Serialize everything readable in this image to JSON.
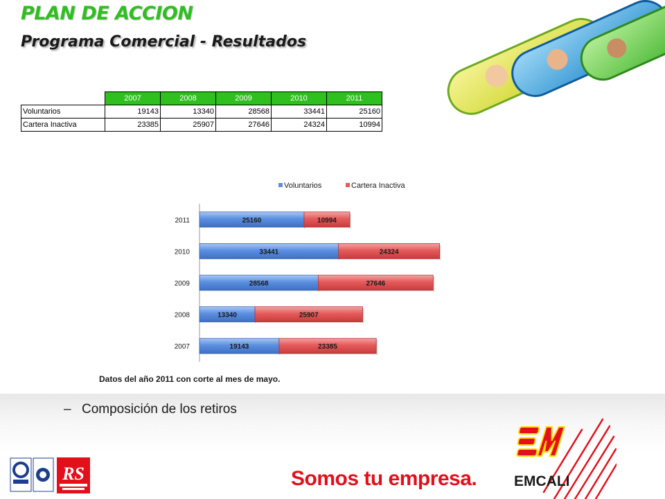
{
  "slide": {
    "title": "PLAN DE ACCION",
    "subtitle": "Programa Comercial - Resultados",
    "footnote": "Datos del año 2011 con corte al mes de mayo.",
    "bullet_dash": "–",
    "bullet": "Composición de los retiros"
  },
  "table": {
    "headers": [
      "2007",
      "2008",
      "2009",
      "2010",
      "2011"
    ],
    "rows": [
      {
        "label": "Voluntarios",
        "values": [
          "19143",
          "13340",
          "28568",
          "33441",
          "25160"
        ]
      },
      {
        "label": "Cartera Inactiva",
        "values": [
          "23385",
          "25907",
          "27646",
          "24324",
          "10994"
        ]
      }
    ]
  },
  "chart_data": {
    "type": "bar",
    "orientation": "horizontal",
    "stacked": true,
    "categories": [
      "2007",
      "2008",
      "2009",
      "2010",
      "2011"
    ],
    "series": [
      {
        "name": "Voluntarios",
        "values": [
          19143,
          13340,
          28568,
          33441,
          25160
        ],
        "color": "#5b8fe0"
      },
      {
        "name": "Cartera Inactiva",
        "values": [
          23385,
          25907,
          27646,
          24324,
          10994
        ],
        "color": "#e55a5a"
      }
    ],
    "xlim": [
      0,
      70000
    ],
    "legend": "top",
    "grid": false,
    "data_labels": true
  },
  "branding": {
    "slogan": "Somos tu empresa.",
    "company": "EMCALI",
    "rs_mark": "RS",
    "colors": {
      "accent_green": "#2fbf1f",
      "brand_red": "#e3101b",
      "brand_yellow": "#ffd700"
    }
  }
}
